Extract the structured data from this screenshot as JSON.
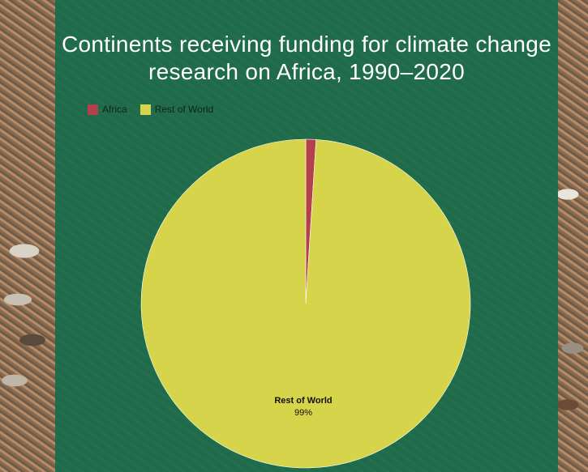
{
  "chart_data": {
    "type": "pie",
    "title": "Continents receiving funding for climate change research on Africa, 1990–2020",
    "legend_position": "top-left",
    "slices": [
      {
        "name": "Africa",
        "value": 1,
        "color": "#b3404a"
      },
      {
        "name": "Rest of World",
        "value": 99,
        "color": "#d6d44a"
      }
    ],
    "data_labels": [
      {
        "name": "Rest of World",
        "percent": "99%"
      }
    ]
  }
}
